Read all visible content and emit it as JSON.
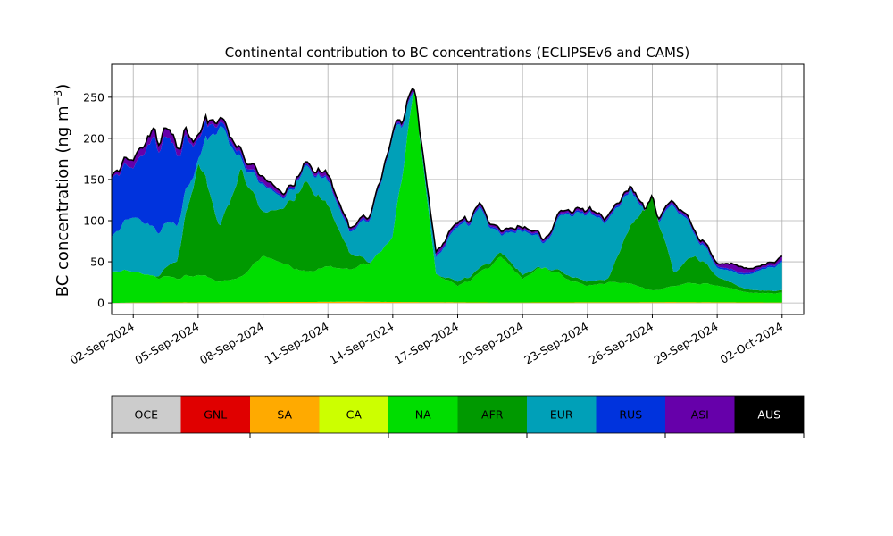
{
  "chart_data": {
    "type": "area",
    "title": "Continental contribution to BC concentrations (ECLIPSEv6 and CAMS)",
    "ylabel_main": "BC concentration (ng m",
    "ylabel_sup": "−3",
    "ylabel_close": ")",
    "x_start": "2024-09-01",
    "x_end": "2024-10-02",
    "xlim": [
      "2024-09-01",
      "2024-10-03"
    ],
    "ylim": [
      -14,
      290
    ],
    "yticks": [
      0,
      50,
      100,
      150,
      200,
      250
    ],
    "xticks": [
      "02-Sep-2024",
      "05-Sep-2024",
      "08-Sep-2024",
      "11-Sep-2024",
      "14-Sep-2024",
      "17-Sep-2024",
      "20-Sep-2024",
      "23-Sep-2024",
      "26-Sep-2024",
      "29-Sep-2024",
      "02-Oct-2024"
    ],
    "grid": true,
    "series": [
      {
        "name": "OCE",
        "color": "#cccccc",
        "points": [
          [
            "2024-09-01",
            0
          ],
          [
            "2024-10-02",
            0
          ]
        ]
      },
      {
        "name": "GNL",
        "color": "#e00000",
        "points": [
          [
            "2024-09-01",
            0
          ],
          [
            "2024-10-02",
            0
          ]
        ]
      },
      {
        "name": "SA",
        "color": "#ffaa00",
        "points": [
          [
            "2024-09-01",
            0
          ],
          [
            "2024-09-02",
            0.5
          ],
          [
            "2024-09-08",
            1
          ],
          [
            "2024-09-12",
            1.5
          ],
          [
            "2024-09-19",
            0.5
          ],
          [
            "2024-09-27",
            1
          ],
          [
            "2024-10-02",
            0.5
          ]
        ]
      },
      {
        "name": "CA",
        "color": "#ccff00",
        "points": [
          [
            "2024-09-01",
            0
          ],
          [
            "2024-10-02",
            0
          ]
        ]
      },
      {
        "name": "NA",
        "color": "#00dd00",
        "points": [
          [
            "2024-09-01",
            40
          ],
          [
            "2024-09-02",
            38
          ],
          [
            "2024-09-03",
            32
          ],
          [
            "2024-09-04",
            30
          ],
          [
            "2024-09-05",
            35
          ],
          [
            "2024-09-06",
            25
          ],
          [
            "2024-09-07",
            30
          ],
          [
            "2024-09-08",
            60
          ],
          [
            "2024-09-09",
            45
          ],
          [
            "2024-09-10",
            40
          ],
          [
            "2024-09-11",
            45
          ],
          [
            "2024-09-12",
            40
          ],
          [
            "2024-09-13",
            50
          ],
          [
            "2024-09-14",
            80
          ],
          [
            "2024-09-15",
            270
          ],
          [
            "2024-09-16",
            35
          ],
          [
            "2024-09-17",
            20
          ],
          [
            "2024-09-18",
            35
          ],
          [
            "2024-09-19",
            55
          ],
          [
            "2024-09-20",
            30
          ],
          [
            "2024-09-21",
            45
          ],
          [
            "2024-09-22",
            30
          ],
          [
            "2024-09-23",
            20
          ],
          [
            "2024-09-24",
            25
          ],
          [
            "2024-09-25",
            25
          ],
          [
            "2024-09-26",
            15
          ],
          [
            "2024-09-27",
            20
          ],
          [
            "2024-09-28",
            25
          ],
          [
            "2024-09-29",
            20
          ],
          [
            "2024-09-30",
            15
          ],
          [
            "2024-10-01",
            12
          ],
          [
            "2024-10-02",
            12
          ]
        ]
      },
      {
        "name": "AFR",
        "color": "#009900",
        "points": [
          [
            "2024-09-01",
            40
          ],
          [
            "2024-09-02",
            38
          ],
          [
            "2024-09-03",
            32
          ],
          [
            "2024-09-04",
            50
          ],
          [
            "2024-09-05",
            175
          ],
          [
            "2024-09-06",
            90
          ],
          [
            "2024-09-07",
            155
          ],
          [
            "2024-09-08",
            115
          ],
          [
            "2024-09-09",
            110
          ],
          [
            "2024-09-10",
            155
          ],
          [
            "2024-09-11",
            120
          ],
          [
            "2024-09-12",
            60
          ],
          [
            "2024-09-13",
            50
          ],
          [
            "2024-09-14",
            80
          ],
          [
            "2024-09-15",
            270
          ],
          [
            "2024-09-16",
            35
          ],
          [
            "2024-09-17",
            25
          ],
          [
            "2024-09-18",
            40
          ],
          [
            "2024-09-19",
            60
          ],
          [
            "2024-09-20",
            35
          ],
          [
            "2024-09-21",
            45
          ],
          [
            "2024-09-22",
            35
          ],
          [
            "2024-09-23",
            25
          ],
          [
            "2024-09-24",
            30
          ],
          [
            "2024-09-25",
            100
          ],
          [
            "2024-09-26",
            130
          ],
          [
            "2024-09-27",
            35
          ],
          [
            "2024-09-28",
            60
          ],
          [
            "2024-09-29",
            30
          ],
          [
            "2024-09-30",
            20
          ],
          [
            "2024-10-01",
            15
          ],
          [
            "2024-10-02",
            15
          ]
        ]
      },
      {
        "name": "EUR",
        "color": "#00a0b8",
        "points": [
          [
            "2024-09-01",
            85
          ],
          [
            "2024-09-02",
            105
          ],
          [
            "2024-09-03",
            90
          ],
          [
            "2024-09-04",
            95
          ],
          [
            "2024-09-05",
            180
          ],
          [
            "2024-09-06",
            210
          ],
          [
            "2024-09-07",
            165
          ],
          [
            "2024-09-08",
            150
          ],
          [
            "2024-09-09",
            120
          ],
          [
            "2024-09-10",
            175
          ],
          [
            "2024-09-11",
            150
          ],
          [
            "2024-09-12",
            85
          ],
          [
            "2024-09-13",
            105
          ],
          [
            "2024-09-14",
            200
          ],
          [
            "2024-09-15",
            265
          ],
          [
            "2024-09-16",
            55
          ],
          [
            "2024-09-17",
            90
          ],
          [
            "2024-09-18",
            110
          ],
          [
            "2024-09-19",
            80
          ],
          [
            "2024-09-20",
            90
          ],
          [
            "2024-09-21",
            75
          ],
          [
            "2024-09-22",
            110
          ],
          [
            "2024-09-23",
            105
          ],
          [
            "2024-09-24",
            100
          ],
          [
            "2024-09-25",
            145
          ],
          [
            "2024-09-26",
            100
          ],
          [
            "2024-09-27",
            115
          ],
          [
            "2024-09-28",
            85
          ],
          [
            "2024-09-29",
            40
          ],
          [
            "2024-09-30",
            35
          ],
          [
            "2024-10-01",
            40
          ],
          [
            "2024-10-02",
            48
          ]
        ]
      },
      {
        "name": "RUS",
        "color": "#0033dd",
        "points": [
          [
            "2024-09-01",
            160
          ],
          [
            "2024-09-02",
            165
          ],
          [
            "2024-09-03",
            200
          ],
          [
            "2024-09-04",
            185
          ],
          [
            "2024-09-05",
            205
          ],
          [
            "2024-09-06",
            215
          ],
          [
            "2024-09-07",
            170
          ],
          [
            "2024-09-08",
            152
          ],
          [
            "2024-09-09",
            122
          ],
          [
            "2024-09-10",
            177
          ],
          [
            "2024-09-11",
            152
          ],
          [
            "2024-09-12",
            87
          ],
          [
            "2024-09-13",
            107
          ],
          [
            "2024-09-14",
            202
          ],
          [
            "2024-09-15",
            267
          ],
          [
            "2024-09-16",
            57
          ],
          [
            "2024-09-17",
            92
          ],
          [
            "2024-09-18",
            112
          ],
          [
            "2024-09-19",
            82
          ],
          [
            "2024-09-20",
            92
          ],
          [
            "2024-09-21",
            77
          ],
          [
            "2024-09-22",
            112
          ],
          [
            "2024-09-23",
            107
          ],
          [
            "2024-09-24",
            102
          ],
          [
            "2024-09-25",
            147
          ],
          [
            "2024-09-26",
            102
          ],
          [
            "2024-09-27",
            117
          ],
          [
            "2024-09-28",
            87
          ],
          [
            "2024-09-29",
            42
          ],
          [
            "2024-09-30",
            37
          ],
          [
            "2024-10-01",
            42
          ],
          [
            "2024-10-02",
            50
          ]
        ]
      },
      {
        "name": "ASI",
        "color": "#6600aa",
        "points": [
          [
            "2024-09-01",
            163
          ],
          [
            "2024-09-02",
            175
          ],
          [
            "2024-09-03",
            210
          ],
          [
            "2024-09-04",
            195
          ],
          [
            "2024-09-05",
            210
          ],
          [
            "2024-09-06",
            220
          ],
          [
            "2024-09-07",
            175
          ],
          [
            "2024-09-08",
            160
          ],
          [
            "2024-09-09",
            125
          ],
          [
            "2024-09-10",
            180
          ],
          [
            "2024-09-11",
            158
          ],
          [
            "2024-09-12",
            90
          ],
          [
            "2024-09-13",
            110
          ],
          [
            "2024-09-14",
            205
          ],
          [
            "2024-09-15",
            272
          ],
          [
            "2024-09-16",
            62
          ],
          [
            "2024-09-17",
            95
          ],
          [
            "2024-09-18",
            115
          ],
          [
            "2024-09-19",
            85
          ],
          [
            "2024-09-20",
            95
          ],
          [
            "2024-09-21",
            80
          ],
          [
            "2024-09-22",
            115
          ],
          [
            "2024-09-23",
            110
          ],
          [
            "2024-09-24",
            105
          ],
          [
            "2024-09-25",
            150
          ],
          [
            "2024-09-26",
            105
          ],
          [
            "2024-09-27",
            120
          ],
          [
            "2024-09-28",
            90
          ],
          [
            "2024-09-29",
            45
          ],
          [
            "2024-09-30",
            45
          ],
          [
            "2024-10-01",
            45
          ],
          [
            "2024-10-02",
            55
          ]
        ]
      },
      {
        "name": "AUS",
        "color": "#000000",
        "points": [
          [
            "2024-09-01",
            163
          ],
          [
            "2024-09-02",
            175
          ],
          [
            "2024-09-03",
            210
          ],
          [
            "2024-09-04",
            195
          ],
          [
            "2024-09-05",
            210
          ],
          [
            "2024-09-06",
            220
          ],
          [
            "2024-09-07",
            175
          ],
          [
            "2024-09-08",
            160
          ],
          [
            "2024-09-09",
            125
          ],
          [
            "2024-09-10",
            180
          ],
          [
            "2024-09-11",
            158
          ],
          [
            "2024-09-12",
            90
          ],
          [
            "2024-09-13",
            110
          ],
          [
            "2024-09-14",
            205
          ],
          [
            "2024-09-15",
            272
          ],
          [
            "2024-09-16",
            62
          ],
          [
            "2024-09-17",
            95
          ],
          [
            "2024-09-18",
            115
          ],
          [
            "2024-09-19",
            85
          ],
          [
            "2024-09-20",
            95
          ],
          [
            "2024-09-21",
            80
          ],
          [
            "2024-09-22",
            115
          ],
          [
            "2024-09-23",
            110
          ],
          [
            "2024-09-24",
            105
          ],
          [
            "2024-09-25",
            150
          ],
          [
            "2024-09-26",
            105
          ],
          [
            "2024-09-27",
            120
          ],
          [
            "2024-09-28",
            90
          ],
          [
            "2024-09-29",
            45
          ],
          [
            "2024-09-30",
            45
          ],
          [
            "2024-10-01",
            45
          ],
          [
            "2024-10-02",
            55
          ]
        ]
      }
    ],
    "legend": {
      "placement": "bottom",
      "items": [
        {
          "name": "OCE",
          "color": "#cccccc",
          "text_color": "#000000"
        },
        {
          "name": "GNL",
          "color": "#e00000",
          "text_color": "#000000"
        },
        {
          "name": "SA",
          "color": "#ffaa00",
          "text_color": "#000000"
        },
        {
          "name": "CA",
          "color": "#ccff00",
          "text_color": "#000000"
        },
        {
          "name": "NA",
          "color": "#00dd00",
          "text_color": "#000000"
        },
        {
          "name": "AFR",
          "color": "#009900",
          "text_color": "#000000"
        },
        {
          "name": "EUR",
          "color": "#00a0b8",
          "text_color": "#000000"
        },
        {
          "name": "RUS",
          "color": "#0033dd",
          "text_color": "#000000"
        },
        {
          "name": "ASI",
          "color": "#6600aa",
          "text_color": "#000000"
        },
        {
          "name": "AUS",
          "color": "#000000",
          "text_color": "#ffffff"
        }
      ]
    }
  }
}
